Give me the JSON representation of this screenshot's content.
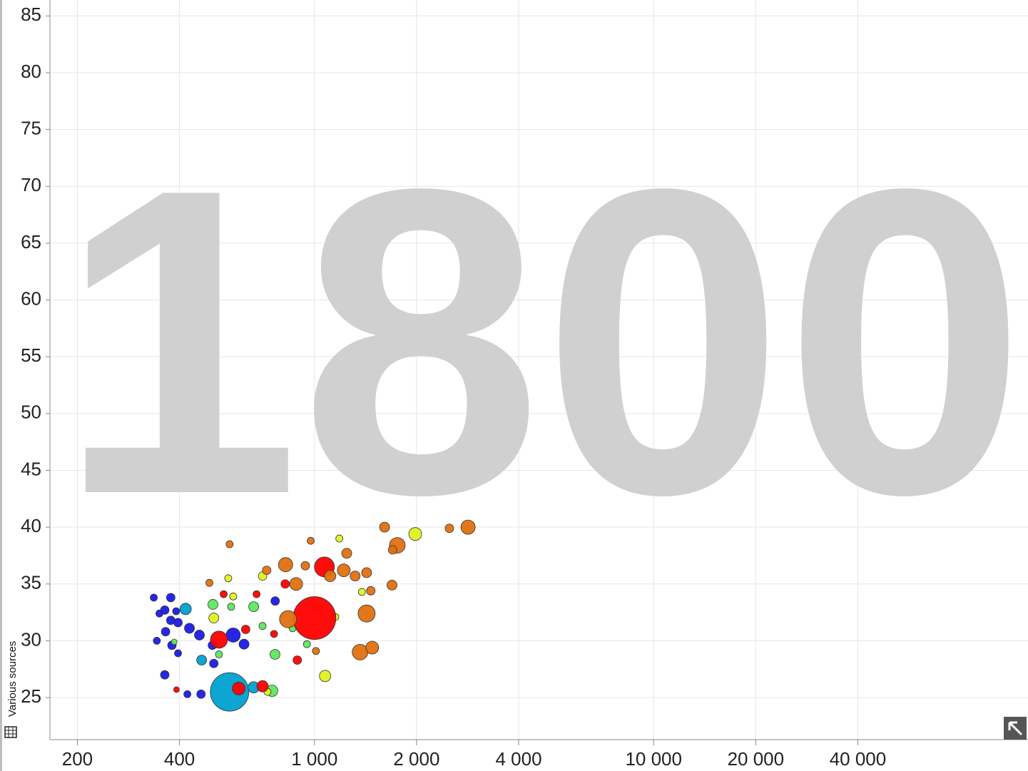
{
  "chart_data": {
    "type": "scatter",
    "year": "1800",
    "source_label": "Various sources",
    "log_x": true,
    "grid": true,
    "xlim": [
      166,
      127000
    ],
    "ylim": [
      21.3,
      86.4
    ],
    "xticks": [
      200,
      400,
      {
        "value": 1000,
        "label": "1 000"
      },
      {
        "value": 2000,
        "label": "2 000"
      },
      {
        "value": 4000,
        "label": "4 000"
      },
      {
        "value": 10000,
        "label": "10 000"
      },
      {
        "value": 20000,
        "label": "20 000"
      },
      {
        "value": 40000,
        "label": "40 000"
      }
    ],
    "yticks": [
      25,
      30,
      35,
      40,
      45,
      50,
      55,
      60,
      65,
      70,
      75,
      80,
      85
    ],
    "series": [
      {
        "color": "#1a1ae6",
        "x": [
          336,
          377,
          362,
          391,
          349,
          377,
          396,
          428,
          364,
          343,
          380,
          458,
          500,
          505,
          362,
          422,
          463,
          576,
          620,
          766,
          396
        ],
        "values": [
          33.8,
          33.8,
          32.7,
          32.6,
          32.4,
          31.8,
          31.6,
          31.1,
          30.8,
          30.0,
          29.6,
          30.5,
          29.6,
          28.0,
          27.0,
          25.3,
          25.3,
          30.5,
          29.7,
          33.5,
          28.9
        ],
        "sizes": [
          5,
          6,
          6,
          5,
          5,
          6,
          6,
          7,
          6,
          5,
          6,
          7,
          6,
          6,
          6,
          5,
          6,
          10,
          7,
          6,
          5
        ]
      },
      {
        "color": "#00a0d0",
        "x": [
          562,
          417,
          465,
          662
        ],
        "values": [
          25.5,
          32.8,
          28.3,
          25.9
        ],
        "sizes": [
          27,
          8,
          7,
          8
        ]
      },
      {
        "color": "#5ee85e",
        "x": [
          502,
          568,
          662,
          750,
          765,
          862,
          523,
          703,
          950,
          386
        ],
        "values": [
          33.2,
          33.0,
          33.0,
          25.6,
          28.8,
          31.1,
          28.8,
          31.3,
          29.7,
          29.9
        ],
        "sizes": [
          7,
          5,
          7,
          8,
          7,
          5,
          5,
          5,
          5,
          4
        ]
      },
      {
        "color": "#e0f21f",
        "x": [
          1982,
          1075,
          1184,
          703,
          557,
          576,
          505,
          1152,
          1030,
          1380,
          727
        ],
        "values": [
          39.4,
          26.9,
          39.0,
          35.7,
          35.5,
          33.9,
          32.0,
          32.1,
          32.9,
          34.3,
          25.5
        ],
        "sizes": [
          9,
          8,
          5,
          6,
          5,
          5,
          7,
          5,
          5,
          5,
          5
        ]
      },
      {
        "color": "#ff0000",
        "x": [
          1000,
          1070,
          523,
          598,
          703,
          392,
          540,
          675,
          627,
          820,
          890,
          760
        ],
        "values": [
          32.0,
          36.5,
          30.1,
          25.8,
          26.0,
          25.7,
          34.1,
          34.1,
          31.0,
          35.0,
          28.3,
          30.6
        ],
        "sizes": [
          30,
          14,
          12,
          9,
          8,
          4,
          5,
          5,
          6,
          6,
          6,
          5
        ]
      },
      {
        "color": "#e07010",
        "x": [
          2837,
          2500,
          1610,
          1755,
          1700,
          1245,
          975,
          562,
          822,
          723,
          940,
          883,
          1220,
          1112,
          1318,
          1425,
          1693,
          1466,
          1425,
          1363,
          1480,
          836,
          490,
          1010
        ],
        "values": [
          40.0,
          39.9,
          40.0,
          38.4,
          38.0,
          37.7,
          38.8,
          38.5,
          36.7,
          36.2,
          36.6,
          35.0,
          36.2,
          35.7,
          35.7,
          36.0,
          34.9,
          34.4,
          32.4,
          29.0,
          29.4,
          31.9,
          35.1,
          29.1
        ],
        "sizes": [
          10,
          6,
          7,
          11,
          6,
          7,
          5,
          5,
          10,
          6,
          6,
          9,
          9,
          8,
          7,
          7,
          7,
          6,
          12,
          11,
          9,
          12,
          5,
          5
        ]
      }
    ]
  }
}
